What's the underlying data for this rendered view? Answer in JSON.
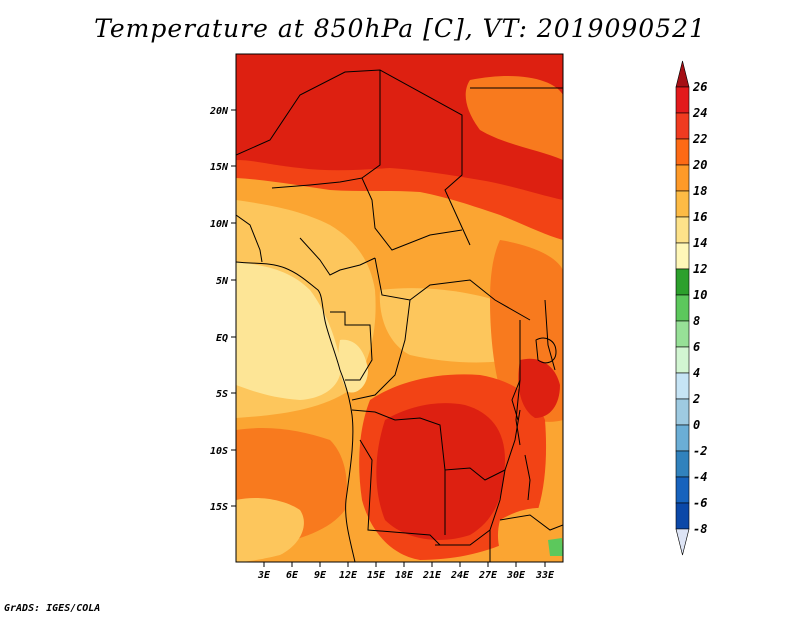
{
  "title": "Temperature at 850hPa [C], VT: 2019090521",
  "credit": "GrADS: IGES/COLA",
  "map": {
    "lat_labels": [
      "20N",
      "15N",
      "10N",
      "5N",
      "EQ",
      "5S",
      "10S",
      "15S"
    ],
    "lon_labels": [
      "3E",
      "6E",
      "9E",
      "12E",
      "15E",
      "18E",
      "21E",
      "24E",
      "27E",
      "30E",
      "33E"
    ]
  },
  "colorbar": {
    "labels": [
      "26",
      "24",
      "22",
      "20",
      "18",
      "16",
      "14",
      "12",
      "10",
      "8",
      "6",
      "4",
      "2",
      "0",
      "-2",
      "-4",
      "-6",
      "-8"
    ],
    "colors": [
      "#a50f15",
      "#e31a1c",
      "#f03b20",
      "#fd6a15",
      "#fe9a28",
      "#fdbb45",
      "#fde28a",
      "#fff7b8",
      "#2ca02c",
      "#5cc85c",
      "#97e097",
      "#d2f5d2",
      "#c6e4f5",
      "#9ecae1",
      "#6baed6",
      "#3182bd",
      "#1763bd",
      "#0b48a8",
      "#08307a",
      "#081060"
    ],
    "min_color": "#dde4f5",
    "max_color": "#a50f15"
  },
  "palette": {
    "c26": "#dd2011",
    "c24": "#f24315",
    "c22": "#f87a1e",
    "c20": "#fba532",
    "c18": "#fdc65c",
    "c16": "#fde596",
    "c14": "#fff7bc"
  }
}
